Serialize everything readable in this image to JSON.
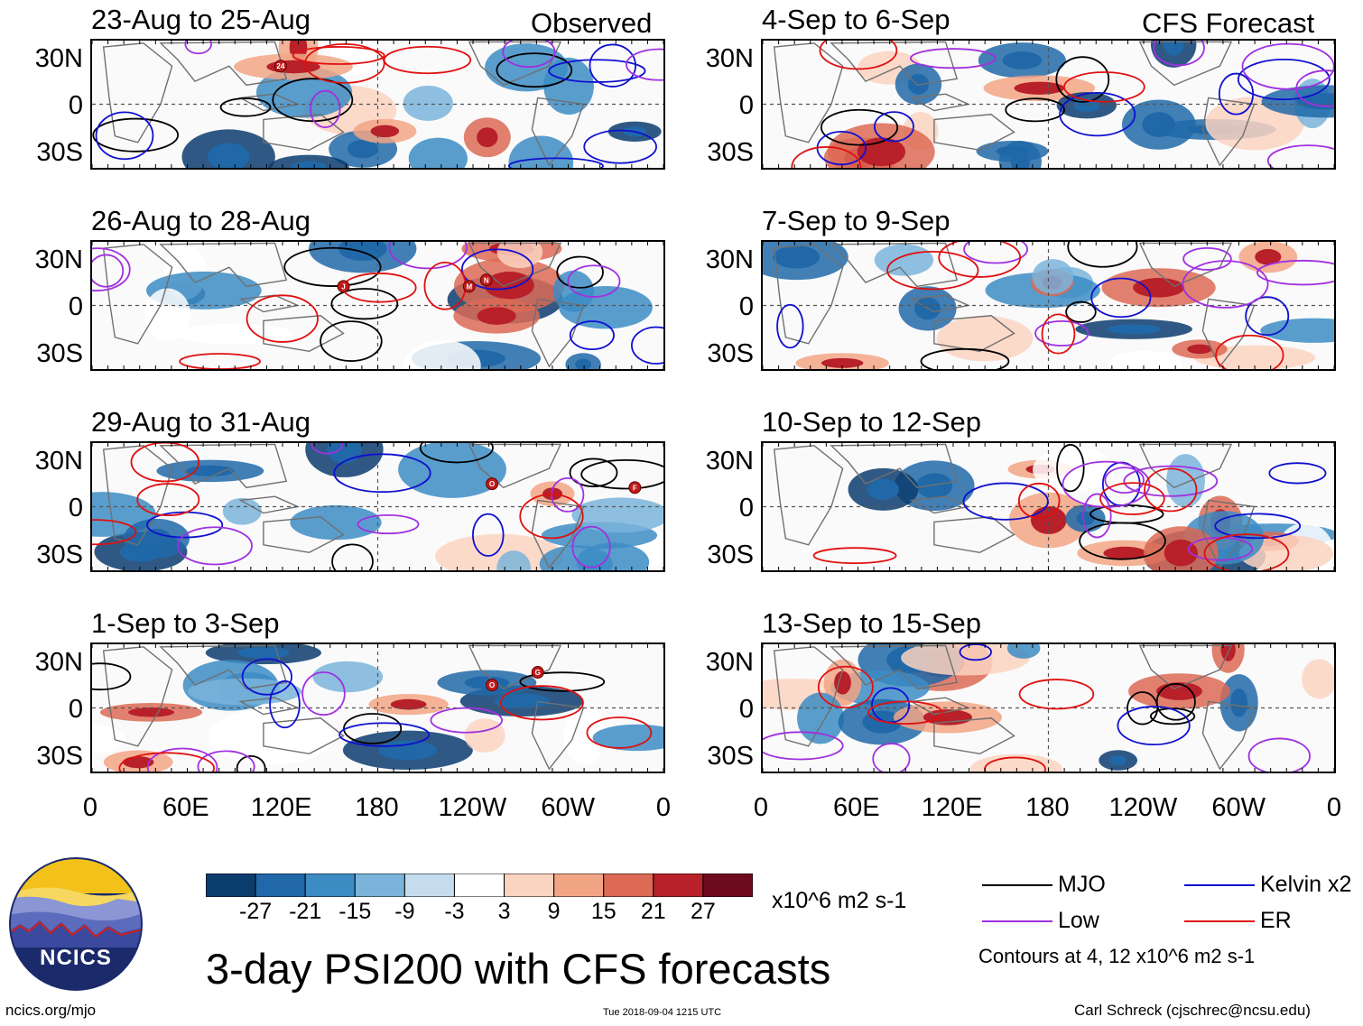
{
  "chart_data": {
    "type": "heatmap",
    "title": "3-day PSI200 with CFS forecasts",
    "variable": "PSI200 anomaly",
    "units": "x10^6 m2 s-1",
    "lat_ticks": [
      "30N",
      "0",
      "30S"
    ],
    "lon_ticks": [
      "0",
      "60E",
      "120E",
      "180",
      "120W",
      "60W",
      "0"
    ],
    "colorbar": {
      "levels": [
        "-27",
        "-21",
        "-15",
        "-9",
        "-3",
        "3",
        "9",
        "15",
        "21",
        "27"
      ],
      "colors": [
        "#0b3c6e",
        "#2068a8",
        "#3c8cc4",
        "#7ab4da",
        "#c4dcee",
        "#ffffff",
        "#fbd3c1",
        "#f2a585",
        "#dc6a55",
        "#b8202a",
        "#6e0a1e"
      ]
    },
    "columns": [
      {
        "label": "Observed",
        "panels": [
          {
            "period": "23-Aug to 25-Aug",
            "storms": [
              {
                "label": "24"
              }
            ]
          },
          {
            "period": "26-Aug to 28-Aug",
            "storms": [
              {
                "label": "J"
              },
              {
                "label": "M"
              },
              {
                "label": "N"
              }
            ]
          },
          {
            "period": "29-Aug to 31-Aug",
            "storms": [
              {
                "label": "O"
              },
              {
                "label": "F"
              }
            ]
          },
          {
            "period": "1-Sep to 3-Sep",
            "storms": [
              {
                "label": "O"
              },
              {
                "label": "G"
              }
            ]
          }
        ]
      },
      {
        "label": "CFS Forecast",
        "panels": [
          {
            "period": "4-Sep to 6-Sep",
            "storms": []
          },
          {
            "period": "7-Sep to 9-Sep",
            "storms": []
          },
          {
            "period": "10-Sep to 12-Sep",
            "storms": []
          },
          {
            "period": "13-Sep to 15-Sep",
            "storms": []
          }
        ]
      }
    ],
    "contours": [
      {
        "name": "MJO",
        "color": "#000000"
      },
      {
        "name": "Kelvin x2",
        "color": "#1010d0"
      },
      {
        "name": "Low",
        "color": "#a030e0"
      },
      {
        "name": "ER",
        "color": "#e01010"
      }
    ],
    "contour_note": "Contours at 4, 12 x10^6 m2 s-1"
  },
  "branding": {
    "logo_text": "NCICS",
    "url": "ncics.org/mjo",
    "timestamp": "Tue 2018-09-04 1215 UTC",
    "credit": "Carl Schreck (cjschrec@ncsu.edu)"
  }
}
